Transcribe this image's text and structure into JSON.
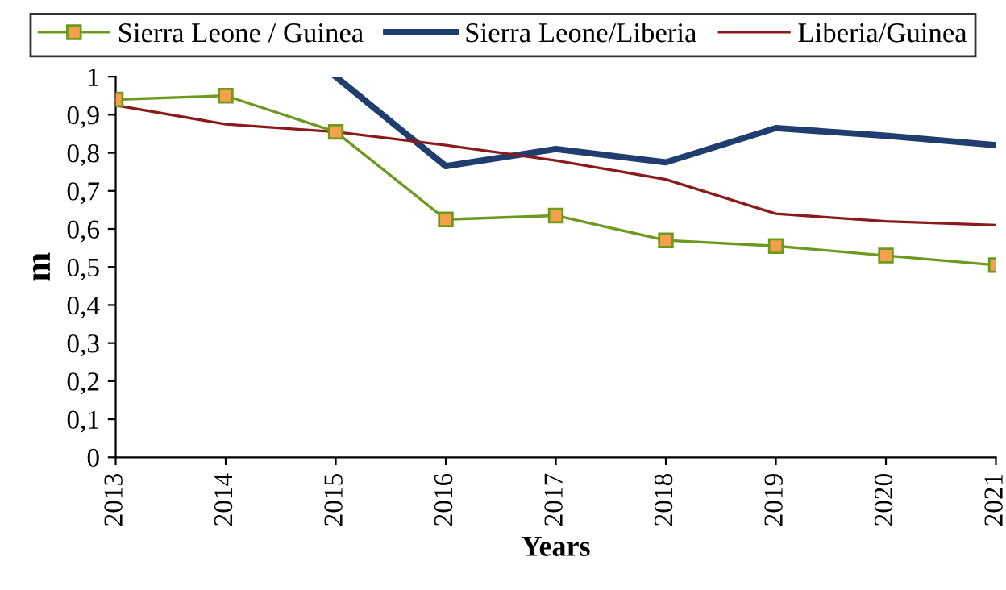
{
  "chart_data": {
    "type": "line",
    "xlabel": "Years",
    "ylabel": "m",
    "categories": [
      "2013",
      "2014",
      "2015",
      "2016",
      "2017",
      "2018",
      "2019",
      "2020",
      "2021"
    ],
    "series": [
      {
        "name": "Sierra Leone / Guinea",
        "color": "#6b9a1f",
        "marker": "square",
        "values": [
          0.94,
          0.95,
          0.855,
          0.625,
          0.635,
          0.57,
          0.555,
          0.53,
          0.505
        ]
      },
      {
        "name": "Sierra Leone/Liberia",
        "color": "#1f3d6e",
        "values": [
          null,
          null,
          1.0,
          0.765,
          0.81,
          0.775,
          0.865,
          0.845,
          0.82
        ]
      },
      {
        "name": "Liberia/Guinea",
        "color": "#8b1a1a",
        "values": [
          0.925,
          0.875,
          0.855,
          0.82,
          0.78,
          0.73,
          0.64,
          0.62,
          0.61
        ]
      }
    ],
    "ylim": [
      0,
      1
    ],
    "yticks": [
      0,
      {
        "value": 0.1,
        "label": "0,1"
      },
      {
        "value": 0.2,
        "label": "0,2"
      },
      {
        "value": 0.3,
        "label": "0,3"
      },
      {
        "value": 0.4,
        "label": "0,4"
      },
      {
        "value": 0.5,
        "label": "0,5"
      },
      {
        "value": 0.6,
        "label": "0,6"
      },
      {
        "value": 0.7,
        "label": "0,7"
      },
      {
        "value": 0.8,
        "label": "0,8"
      },
      {
        "value": 0.9,
        "label": "0,9"
      },
      1
    ],
    "grid": false,
    "legend": "top"
  }
}
